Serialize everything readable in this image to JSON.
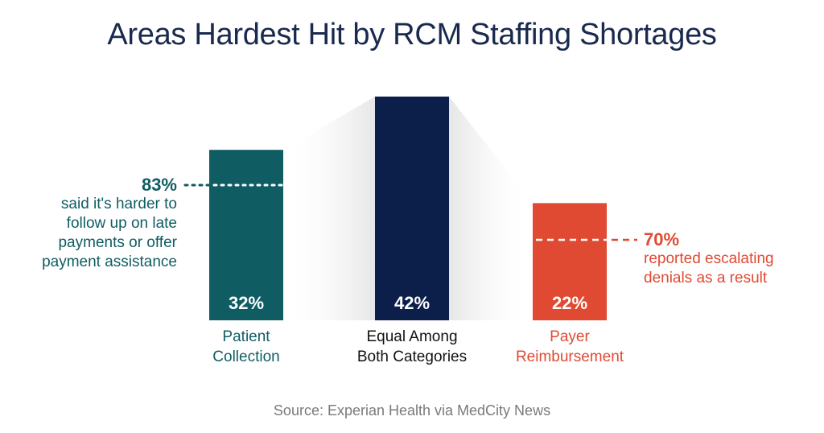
{
  "title": "Areas Hardest Hit by RCM Staffing Shortages",
  "source": "Source: Experian Health via MedCity News",
  "colors": {
    "teal": "#0f5d63",
    "navy": "#0c1e4a",
    "orange": "#e04a32",
    "shadow": "#ececec"
  },
  "chart_data": {
    "type": "bar",
    "title": "Areas Hardest Hit by RCM Staffing Shortages",
    "categories": [
      "Patient Collection",
      "Equal Among Both Categories",
      "Payer Reimbursement"
    ],
    "category_lines": [
      [
        "Patient",
        "Collection"
      ],
      [
        "Equal Among",
        "Both Categories"
      ],
      [
        "Payer",
        "Reimbursement"
      ]
    ],
    "values": [
      32,
      42,
      22
    ],
    "value_labels": [
      "32%",
      "42%",
      "22%"
    ],
    "colors": [
      "#0f5d63",
      "#0c1e4a",
      "#e04a32"
    ],
    "ylim": [
      0,
      42
    ],
    "grid": false,
    "annotations": [
      {
        "target": "Patient Collection",
        "value": "83%",
        "text": [
          "said it's harder to",
          "follow up on late",
          "payments or offer",
          "payment assistance"
        ]
      },
      {
        "target": "Payer Reimbursement",
        "value": "70%",
        "text": [
          "reported escalating",
          "denials as a result"
        ]
      }
    ]
  }
}
